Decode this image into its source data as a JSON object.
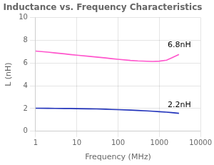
{
  "chart_data": {
    "type": "line",
    "title": "Inductance vs. Frequency Characteristics",
    "x_label": "Frequency (MHz)",
    "y_label": "L (nH)",
    "log": "x",
    "grid": true,
    "x": [
      1,
      2,
      3,
      5,
      7,
      10,
      20,
      30,
      50,
      70,
      100,
      200,
      300,
      500,
      700,
      1000,
      1500,
      2000,
      3000
    ],
    "series": [
      {
        "color": "#FF55CC",
        "values": [
          7.05,
          6.95,
          6.88,
          6.8,
          6.74,
          6.68,
          6.58,
          6.52,
          6.44,
          6.38,
          6.32,
          6.22,
          6.18,
          6.15,
          6.14,
          6.16,
          6.25,
          6.45,
          6.75
        ]
      },
      {
        "color": "#2233BB",
        "values": [
          2.03,
          2.02,
          2.01,
          2.0,
          2.0,
          1.99,
          1.97,
          1.96,
          1.94,
          1.92,
          1.9,
          1.86,
          1.83,
          1.79,
          1.76,
          1.72,
          1.68,
          1.64,
          1.58
        ]
      }
    ],
    "xlim": [
      1,
      10000
    ],
    "xticks": [
      1,
      10,
      100,
      1000,
      10000
    ],
    "ylim": [
      0,
      10
    ],
    "yticks": [
      0,
      2,
      4,
      6,
      8,
      10
    ],
    "annotations": [
      {
        "text": "6.8nH",
        "x": 1600,
        "y": 7.55
      },
      {
        "text": "2.2nH",
        "x": 1600,
        "y": 2.3
      }
    ]
  }
}
